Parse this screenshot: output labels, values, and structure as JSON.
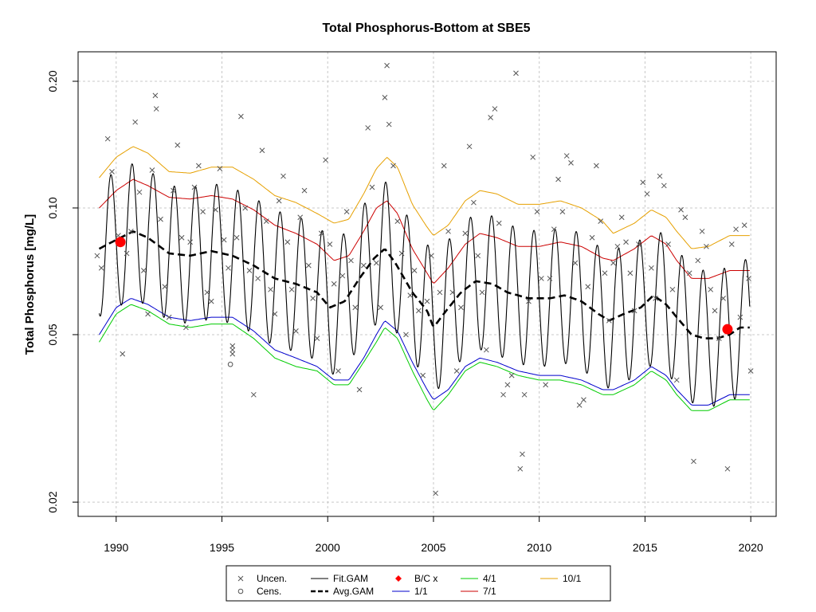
{
  "chart_data": {
    "type": "line",
    "title": "Total Phosphorus-Bottom at SBE5",
    "xlabel": "",
    "ylabel": "Total Phosphorus [mg/L]",
    "xlim": [
      1988.2,
      2021.2
    ],
    "ylim": [
      0.0185,
      0.235
    ],
    "y_scale": "log",
    "grid": true,
    "x_ticks": [
      1990,
      1995,
      2000,
      2005,
      2010,
      2015,
      2020
    ],
    "y_ticks": [
      0.02,
      0.05,
      0.1,
      0.2
    ],
    "y_tick_labels": [
      "0.02",
      "0.05",
      "0.10",
      "0.20"
    ],
    "colors": {
      "fit": "#000000",
      "avg": "#000000",
      "bc": "#ff0000",
      "p1": "#0000cc",
      "p4": "#00cc00",
      "p7": "#cc0000",
      "p10": "#e6a000",
      "points": "#555555"
    },
    "fit_gam": {
      "x_start": 1989.2,
      "x_end": 2019.95,
      "mean_x": [
        1989.2,
        1990.0,
        1990.8,
        1991.5,
        1992.5,
        1993.5,
        1994.5,
        1995.5,
        1996.5,
        1997.5,
        1998.5,
        1999.5,
        2000.1,
        2000.8,
        2001.5,
        2002.2,
        2002.7,
        2003.2,
        2004.0,
        2004.7,
        2005.0,
        2005.6,
        2006.3,
        2007.0,
        2007.8,
        2008.5,
        2009.5,
        2010.5,
        2011.2,
        2012.0,
        2012.8,
        2013.3,
        2014.0,
        2014.8,
        2015.4,
        2016.0,
        2016.5,
        2017.2,
        2017.8,
        2018.4,
        2019.0,
        2019.5,
        2019.95
      ],
      "mean_y": [
        0.08,
        0.084,
        0.088,
        0.085,
        0.078,
        0.077,
        0.079,
        0.077,
        0.073,
        0.068,
        0.066,
        0.063,
        0.058,
        0.06,
        0.068,
        0.076,
        0.08,
        0.074,
        0.063,
        0.057,
        0.052,
        0.057,
        0.063,
        0.067,
        0.066,
        0.063,
        0.061,
        0.061,
        0.062,
        0.06,
        0.056,
        0.054,
        0.056,
        0.058,
        0.062,
        0.059,
        0.055,
        0.05,
        0.049,
        0.049,
        0.05,
        0.052,
        0.052
      ],
      "amplitude_ratio": 1.45
    },
    "series": [
      {
        "name": "Avg.GAM",
        "x": [
          1989.2,
          1990.0,
          1990.8,
          1991.5,
          1992.5,
          1993.5,
          1994.5,
          1995.5,
          1996.5,
          1997.5,
          1998.5,
          1999.5,
          2000.1,
          2000.8,
          2001.5,
          2002.2,
          2002.7,
          2003.2,
          2004.0,
          2004.7,
          2005.0,
          2005.6,
          2006.3,
          2007.0,
          2007.8,
          2008.5,
          2009.5,
          2010.5,
          2011.2,
          2012.0,
          2012.8,
          2013.3,
          2014.0,
          2014.8,
          2015.4,
          2016.0,
          2016.5,
          2017.2,
          2017.8,
          2018.4,
          2019.0,
          2019.5,
          2019.95
        ],
        "y": [
          0.08,
          0.084,
          0.088,
          0.085,
          0.078,
          0.077,
          0.079,
          0.077,
          0.073,
          0.068,
          0.066,
          0.063,
          0.058,
          0.06,
          0.068,
          0.076,
          0.08,
          0.074,
          0.063,
          0.057,
          0.052,
          0.057,
          0.063,
          0.067,
          0.066,
          0.063,
          0.061,
          0.061,
          0.062,
          0.06,
          0.056,
          0.054,
          0.056,
          0.058,
          0.062,
          0.059,
          0.055,
          0.05,
          0.049,
          0.049,
          0.05,
          0.052,
          0.052
        ]
      },
      {
        "name": "1/1",
        "x": [
          1989.2,
          1990.0,
          1990.7,
          1991.5,
          1992.5,
          1993.5,
          1994.5,
          1995.5,
          1996.5,
          1997.5,
          1998.5,
          1999.5,
          2000.3,
          2001.0,
          2001.7,
          2002.3,
          2002.7,
          2003.3,
          2004.0,
          2004.7,
          2005.0,
          2005.7,
          2006.5,
          2007.2,
          2008.0,
          2009.0,
          2010.0,
          2011.0,
          2012.0,
          2013.0,
          2013.5,
          2014.5,
          2015.3,
          2016.0,
          2016.5,
          2017.2,
          2018.0,
          2019.0,
          2019.95
        ],
        "y": [
          0.05,
          0.058,
          0.061,
          0.059,
          0.055,
          0.054,
          0.055,
          0.055,
          0.051,
          0.046,
          0.044,
          0.042,
          0.039,
          0.039,
          0.044,
          0.05,
          0.054,
          0.051,
          0.043,
          0.037,
          0.035,
          0.037,
          0.042,
          0.044,
          0.043,
          0.041,
          0.04,
          0.04,
          0.039,
          0.037,
          0.037,
          0.039,
          0.042,
          0.04,
          0.037,
          0.034,
          0.034,
          0.036,
          0.036
        ]
      },
      {
        "name": "4/1",
        "x": [
          1989.2,
          1990.0,
          1990.7,
          1991.5,
          1992.5,
          1993.5,
          1994.5,
          1995.5,
          1996.5,
          1997.5,
          1998.5,
          1999.5,
          2000.3,
          2001.0,
          2001.7,
          2002.3,
          2002.7,
          2003.3,
          2004.0,
          2004.7,
          2005.0,
          2005.7,
          2006.5,
          2007.2,
          2008.0,
          2009.0,
          2010.0,
          2011.0,
          2012.0,
          2013.0,
          2013.5,
          2014.5,
          2015.3,
          2016.0,
          2016.5,
          2017.2,
          2018.0,
          2019.0,
          2019.95
        ],
        "y": [
          0.048,
          0.056,
          0.059,
          0.057,
          0.053,
          0.052,
          0.053,
          0.053,
          0.049,
          0.044,
          0.042,
          0.041,
          0.038,
          0.038,
          0.043,
          0.048,
          0.052,
          0.049,
          0.041,
          0.035,
          0.033,
          0.036,
          0.041,
          0.043,
          0.042,
          0.04,
          0.039,
          0.039,
          0.038,
          0.036,
          0.036,
          0.038,
          0.041,
          0.039,
          0.036,
          0.033,
          0.033,
          0.035,
          0.035
        ]
      },
      {
        "name": "7/1",
        "x": [
          1989.2,
          1990.0,
          1990.8,
          1991.5,
          1992.5,
          1993.5,
          1994.5,
          1995.5,
          1996.5,
          1997.5,
          1998.5,
          1999.5,
          2000.3,
          2001.0,
          2001.7,
          2002.3,
          2002.8,
          2003.3,
          2004.0,
          2004.7,
          2005.0,
          2005.7,
          2006.5,
          2007.2,
          2008.0,
          2009.0,
          2010.0,
          2011.0,
          2012.0,
          2013.0,
          2013.5,
          2014.5,
          2015.3,
          2016.0,
          2016.5,
          2017.2,
          2018.0,
          2019.0,
          2019.95
        ],
        "y": [
          0.1,
          0.11,
          0.117,
          0.113,
          0.106,
          0.105,
          0.107,
          0.105,
          0.099,
          0.091,
          0.087,
          0.082,
          0.075,
          0.077,
          0.088,
          0.1,
          0.104,
          0.097,
          0.08,
          0.07,
          0.066,
          0.072,
          0.082,
          0.087,
          0.085,
          0.081,
          0.081,
          0.083,
          0.081,
          0.076,
          0.075,
          0.08,
          0.086,
          0.082,
          0.075,
          0.068,
          0.068,
          0.071,
          0.071
        ]
      },
      {
        "name": "10/1",
        "x": [
          1989.2,
          1990.0,
          1990.8,
          1991.5,
          1992.5,
          1993.5,
          1994.5,
          1995.5,
          1996.5,
          1997.5,
          1998.5,
          1999.5,
          2000.3,
          2001.0,
          2001.7,
          2002.3,
          2002.8,
          2003.3,
          2004.0,
          2004.7,
          2005.0,
          2005.7,
          2006.5,
          2007.2,
          2008.0,
          2009.0,
          2010.0,
          2011.0,
          2012.0,
          2013.0,
          2013.5,
          2014.5,
          2015.3,
          2016.0,
          2016.5,
          2017.2,
          2018.0,
          2019.0,
          2019.95
        ],
        "y": [
          0.118,
          0.132,
          0.14,
          0.135,
          0.122,
          0.121,
          0.125,
          0.125,
          0.117,
          0.107,
          0.103,
          0.097,
          0.092,
          0.094,
          0.108,
          0.124,
          0.132,
          0.125,
          0.102,
          0.09,
          0.086,
          0.091,
          0.104,
          0.11,
          0.108,
          0.102,
          0.102,
          0.104,
          0.1,
          0.093,
          0.087,
          0.092,
          0.099,
          0.095,
          0.088,
          0.08,
          0.081,
          0.086,
          0.086
        ]
      }
    ],
    "bc_points": [
      {
        "x": 1990.2,
        "y": 0.083
      },
      {
        "x": 2018.9,
        "y": 0.0515
      }
    ],
    "uncensored_points": [
      [
        1989.1,
        0.077
      ],
      [
        1989.3,
        0.072
      ],
      [
        1989.6,
        0.146
      ],
      [
        1989.8,
        0.122
      ],
      [
        1990.1,
        0.086
      ],
      [
        1990.3,
        0.045
      ],
      [
        1990.5,
        0.078
      ],
      [
        1990.7,
        0.088
      ],
      [
        1990.9,
        0.16
      ],
      [
        1991.1,
        0.109
      ],
      [
        1991.3,
        0.071
      ],
      [
        1991.5,
        0.056
      ],
      [
        1991.7,
        0.123
      ],
      [
        1991.85,
        0.185
      ],
      [
        1991.9,
        0.172
      ],
      [
        1992.1,
        0.094
      ],
      [
        1992.3,
        0.065
      ],
      [
        1992.5,
        0.055
      ],
      [
        1992.7,
        0.11
      ],
      [
        1992.9,
        0.141
      ],
      [
        1993.1,
        0.085
      ],
      [
        1993.3,
        0.052
      ],
      [
        1993.5,
        0.083
      ],
      [
        1993.7,
        0.112
      ],
      [
        1993.9,
        0.126
      ],
      [
        1994.1,
        0.098
      ],
      [
        1994.3,
        0.063
      ],
      [
        1994.5,
        0.06
      ],
      [
        1994.7,
        0.099
      ],
      [
        1994.9,
        0.124
      ],
      [
        1995.1,
        0.084
      ],
      [
        1995.3,
        0.072
      ],
      [
        1995.5,
        0.047
      ],
      [
        1995.5,
        0.046
      ],
      [
        1995.5,
        0.045
      ],
      [
        1995.7,
        0.085
      ],
      [
        1995.9,
        0.165
      ],
      [
        1996.1,
        0.1
      ],
      [
        1996.3,
        0.071
      ],
      [
        1996.5,
        0.036
      ],
      [
        1996.7,
        0.068
      ],
      [
        1996.9,
        0.137
      ],
      [
        1997.1,
        0.093
      ],
      [
        1997.3,
        0.064
      ],
      [
        1997.5,
        0.056
      ],
      [
        1997.7,
        0.104
      ],
      [
        1997.9,
        0.119
      ],
      [
        1998.1,
        0.083
      ],
      [
        1998.3,
        0.064
      ],
      [
        1998.5,
        0.051
      ],
      [
        1998.7,
        0.095
      ],
      [
        1998.9,
        0.11
      ],
      [
        1999.1,
        0.073
      ],
      [
        1999.3,
        0.061
      ],
      [
        1999.5,
        0.049
      ],
      [
        1999.7,
        0.087
      ],
      [
        1999.9,
        0.13
      ],
      [
        2000.1,
        0.082
      ],
      [
        2000.3,
        0.066
      ],
      [
        2000.5,
        0.041
      ],
      [
        2000.7,
        0.069
      ],
      [
        2000.9,
        0.098
      ],
      [
        2001.1,
        0.075
      ],
      [
        2001.3,
        0.058
      ],
      [
        2001.5,
        0.037
      ],
      [
        2001.7,
        0.073
      ],
      [
        2001.9,
        0.155
      ],
      [
        2002.1,
        0.112
      ],
      [
        2002.3,
        0.074
      ],
      [
        2002.5,
        0.058
      ],
      [
        2002.7,
        0.183
      ],
      [
        2002.8,
        0.218
      ],
      [
        2002.9,
        0.158
      ],
      [
        2003.1,
        0.126
      ],
      [
        2003.3,
        0.093
      ],
      [
        2003.5,
        0.078
      ],
      [
        2003.7,
        0.05
      ],
      [
        2003.9,
        0.062
      ],
      [
        2004.1,
        0.071
      ],
      [
        2004.3,
        0.057
      ],
      [
        2004.5,
        0.04
      ],
      [
        2004.7,
        0.06
      ],
      [
        2004.9,
        0.077
      ],
      [
        2005.1,
        0.021
      ],
      [
        2005.3,
        0.063
      ],
      [
        2005.5,
        0.126
      ],
      [
        2005.7,
        0.088
      ],
      [
        2005.9,
        0.063
      ],
      [
        2006.1,
        0.041
      ],
      [
        2006.3,
        0.058
      ],
      [
        2006.5,
        0.087
      ],
      [
        2006.7,
        0.14
      ],
      [
        2006.9,
        0.103
      ],
      [
        2007.1,
        0.077
      ],
      [
        2007.3,
        0.063
      ],
      [
        2007.5,
        0.046
      ],
      [
        2007.7,
        0.164
      ],
      [
        2007.9,
        0.172
      ],
      [
        2008.1,
        0.092
      ],
      [
        2008.3,
        0.036
      ],
      [
        2008.5,
        0.038
      ],
      [
        2008.7,
        0.04
      ],
      [
        2008.9,
        0.209
      ],
      [
        2009.1,
        0.024
      ],
      [
        2009.2,
        0.026
      ],
      [
        2009.3,
        0.036
      ],
      [
        2009.5,
        0.06
      ],
      [
        2009.7,
        0.132
      ],
      [
        2009.9,
        0.098
      ],
      [
        2010.1,
        0.068
      ],
      [
        2010.3,
        0.038
      ],
      [
        2010.5,
        0.068
      ],
      [
        2010.7,
        0.089
      ],
      [
        2010.9,
        0.117
      ],
      [
        2011.1,
        0.098
      ],
      [
        2011.3,
        0.133
      ],
      [
        2011.5,
        0.128
      ],
      [
        2011.7,
        0.074
      ],
      [
        2011.9,
        0.034
      ],
      [
        2012.1,
        0.035
      ],
      [
        2012.3,
        0.065
      ],
      [
        2012.5,
        0.085
      ],
      [
        2012.7,
        0.126
      ],
      [
        2012.9,
        0.093
      ],
      [
        2013.1,
        0.07
      ],
      [
        2013.3,
        0.054
      ],
      [
        2013.5,
        0.074
      ],
      [
        2013.7,
        0.081
      ],
      [
        2013.9,
        0.095
      ],
      [
        2014.1,
        0.083
      ],
      [
        2014.3,
        0.07
      ],
      [
        2014.5,
        0.057
      ],
      [
        2014.7,
        0.082
      ],
      [
        2014.9,
        0.115
      ],
      [
        2015.1,
        0.108
      ],
      [
        2015.3,
        0.072
      ],
      [
        2015.5,
        0.061
      ],
      [
        2015.7,
        0.119
      ],
      [
        2015.9,
        0.113
      ],
      [
        2016.1,
        0.082
      ],
      [
        2016.3,
        0.064
      ],
      [
        2016.5,
        0.039
      ],
      [
        2016.7,
        0.099
      ],
      [
        2016.9,
        0.095
      ],
      [
        2017.1,
        0.07
      ],
      [
        2017.3,
        0.025
      ],
      [
        2017.5,
        0.075
      ],
      [
        2017.7,
        0.088
      ],
      [
        2017.9,
        0.081
      ],
      [
        2018.1,
        0.064
      ],
      [
        2018.3,
        0.057
      ],
      [
        2018.5,
        0.049
      ],
      [
        2018.7,
        0.061
      ],
      [
        2018.9,
        0.024
      ],
      [
        2019.1,
        0.082
      ],
      [
        2019.3,
        0.089
      ],
      [
        2019.5,
        0.055
      ],
      [
        2019.7,
        0.091
      ],
      [
        2019.9,
        0.068
      ],
      [
        2020.0,
        0.041
      ]
    ],
    "censored_points": [
      [
        1995.4,
        0.0425
      ]
    ],
    "legend": {
      "placement": "bottom",
      "items": [
        {
          "label": "Uncen.",
          "kind": "cross",
          "color": "#555555"
        },
        {
          "label": "Cens.",
          "kind": "circle",
          "color": "#555555"
        },
        {
          "label": "Fit.GAM",
          "kind": "line",
          "color": "#000000"
        },
        {
          "label": "Avg.GAM",
          "kind": "dash",
          "color": "#000000"
        },
        {
          "label": "B/C x",
          "kind": "diamond",
          "color": "#ff0000"
        },
        {
          "label": "1/1",
          "kind": "line",
          "color": "#0000cc"
        },
        {
          "label": "4/1",
          "kind": "line",
          "color": "#00cc00"
        },
        {
          "label": "7/1",
          "kind": "line",
          "color": "#cc0000"
        },
        {
          "label": "10/1",
          "kind": "line",
          "color": "#e6a000"
        }
      ]
    }
  }
}
